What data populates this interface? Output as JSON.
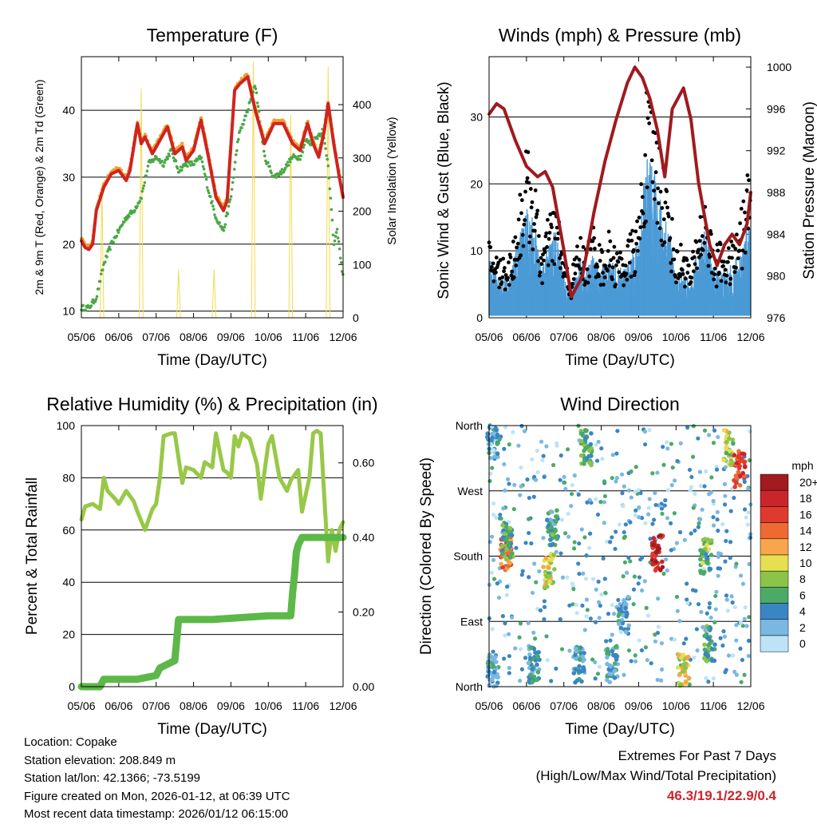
{
  "colors": {
    "temp_2m": "#d0241f",
    "temp_9m": "#f0a030",
    "dewpoint": "#4aa844",
    "solar": "#f5d94a",
    "wind": "#4b9ad6",
    "gust": "#000000",
    "pressure": "#a01a1e",
    "rh": "#98c848",
    "precip": "#5cb848",
    "extremes_text": "#c9262c"
  },
  "info": {
    "location": "Location: Copake",
    "elevation": "Station elevation: 208.849 m",
    "latlon": "Station lat/lon: 42.1366; -73.5199",
    "created": "Figure created on Mon, 2026-01-12, at 06:39 UTC",
    "timestamp": "Most recent data timestamp: 2026/01/12 06:15:00"
  },
  "extremes": {
    "title": "Extremes For Past 7 Days",
    "subtitle": "(High/Low/Max Wind/Total Precipitation)",
    "values": "46.3/19.1/22.9/0.4"
  },
  "chart_data": [
    {
      "id": "temperature",
      "type": "line",
      "title": "Temperature (F)",
      "xlabel": "Time (Day/UTC)",
      "ylabel": "2m & 9m T (Red, Orange) & 2m Td (Green)",
      "y2label": "Solar Insolation (Yellow)",
      "x_ticks": [
        "05/06",
        "06/06",
        "07/06",
        "08/06",
        "09/06",
        "10/06",
        "11/06",
        "12/06"
      ],
      "xlim": [
        0,
        7
      ],
      "ylim": [
        9,
        48
      ],
      "y_ticks": [
        10,
        20,
        30,
        40
      ],
      "y2lim": [
        0,
        490
      ],
      "y2_ticks": [
        0,
        100,
        200,
        300,
        400
      ],
      "series": [
        {
          "name": "2m T",
          "color_key": "temp_2m",
          "x": [
            0,
            0.1,
            0.2,
            0.3,
            0.4,
            0.6,
            0.8,
            1.0,
            1.2,
            1.3,
            1.5,
            1.6,
            1.7,
            1.9,
            2.1,
            2.3,
            2.5,
            2.7,
            2.8,
            3.0,
            3.2,
            3.4,
            3.6,
            3.8,
            3.9,
            4.1,
            4.25,
            4.45,
            4.65,
            4.9,
            5.15,
            5.4,
            5.65,
            5.85,
            6.05,
            6.2,
            6.35,
            6.5,
            6.6,
            6.75,
            6.9,
            7.0
          ],
          "values": [
            20.5,
            19.5,
            19.2,
            20,
            25,
            28.5,
            30.5,
            31,
            29.5,
            31,
            38,
            35,
            36,
            33.5,
            35.5,
            37.5,
            33.5,
            34.5,
            32.5,
            34,
            38.5,
            33,
            27,
            25,
            26.5,
            43,
            44,
            45,
            40,
            35,
            38,
            38,
            35,
            34,
            38,
            35,
            33,
            37,
            41,
            35,
            30,
            27
          ]
        },
        {
          "name": "2m Td",
          "color_key": "dewpoint",
          "x": [
            0,
            0.2,
            0.4,
            0.6,
            0.8,
            1.0,
            1.2,
            1.4,
            1.6,
            1.8,
            2.0,
            2.2,
            2.4,
            2.6,
            2.8,
            3.0,
            3.2,
            3.4,
            3.6,
            3.8,
            4.0,
            4.2,
            4.45,
            4.65,
            4.9,
            5.15,
            5.4,
            5.65,
            5.85,
            6.0,
            6.15,
            6.3,
            6.45,
            6.6,
            6.75,
            6.85,
            6.95,
            7.0
          ],
          "values": [
            10.5,
            10.5,
            12,
            17,
            20,
            22,
            24,
            25,
            27,
            32,
            33,
            32,
            34,
            31,
            32,
            32,
            33,
            28,
            24,
            22,
            27,
            36,
            40,
            44,
            33,
            30,
            31,
            33,
            33,
            35.5,
            35,
            36,
            37,
            32,
            20,
            22,
            17,
            15.5
          ]
        },
        {
          "name": "Solar Insolation",
          "color_key": "solar",
          "axis": "y2",
          "x": [
            0.3,
            0.5,
            0.55,
            0.6,
            0.8,
            1.3,
            1.55,
            1.6,
            1.65,
            1.9,
            2.3,
            2.55,
            2.6,
            2.65,
            2.9,
            3.3,
            3.5,
            3.55,
            3.6,
            3.85,
            4.3,
            4.55,
            4.6,
            4.65,
            4.85,
            5.3,
            5.55,
            5.6,
            5.65,
            5.85,
            6.3,
            6.55,
            6.6,
            6.65,
            6.9
          ],
          "values": [
            0,
            0,
            240,
            0,
            0,
            0,
            0,
            430,
            0,
            0,
            0,
            0,
            90,
            0,
            0,
            0,
            0,
            90,
            0,
            0,
            0,
            0,
            480,
            0,
            0,
            0,
            0,
            380,
            0,
            0,
            0,
            0,
            470,
            0,
            0
          ]
        }
      ]
    },
    {
      "id": "winds_pressure",
      "type": "scatter",
      "title": "Winds (mph) & Pressure (mb)",
      "xlabel": "Time (Day/UTC)",
      "ylabel": "Sonic Wind & Gust (Blue, Black)",
      "y2label": "Station Pressure (Maroon)",
      "x_ticks": [
        "05/06",
        "06/06",
        "07/06",
        "08/06",
        "09/06",
        "10/06",
        "11/06",
        "12/06"
      ],
      "xlim": [
        0,
        7
      ],
      "ylim": [
        0,
        39
      ],
      "y_ticks": [
        0,
        10,
        20,
        30
      ],
      "y2lim": [
        976,
        1001
      ],
      "y2_ticks": [
        976,
        980,
        984,
        988,
        992,
        996,
        1000
      ],
      "series": [
        {
          "name": "Wind",
          "color_key": "wind",
          "x": [
            0,
            0.3,
            0.6,
            0.8,
            1.0,
            1.2,
            1.4,
            1.6,
            1.8,
            2.0,
            2.2,
            2.4,
            2.6,
            2.8,
            3.0,
            3.2,
            3.4,
            3.6,
            3.8,
            4.0,
            4.2,
            4.4,
            4.6,
            4.8,
            5.0,
            5.2,
            5.4,
            5.6,
            5.8,
            6.0,
            6.2,
            6.4,
            6.6,
            6.8,
            7.0
          ],
          "values": [
            6,
            4,
            5,
            8,
            11,
            10,
            5,
            8,
            9,
            4,
            3,
            6,
            5,
            7,
            5,
            6,
            5,
            5,
            6,
            8,
            17,
            15,
            12,
            10,
            4,
            5,
            3,
            8,
            9,
            5,
            5,
            5,
            6,
            8,
            10
          ]
        },
        {
          "name": "Gust",
          "color_key": "gust",
          "x": [
            0,
            0.3,
            0.6,
            0.8,
            1.0,
            1.2,
            1.4,
            1.6,
            1.8,
            2.0,
            2.2,
            2.4,
            2.6,
            2.8,
            3.0,
            3.2,
            3.4,
            3.6,
            3.8,
            4.0,
            4.2,
            4.4,
            4.6,
            4.8,
            5.0,
            5.2,
            5.4,
            5.6,
            5.8,
            6.0,
            6.2,
            6.4,
            6.6,
            6.8,
            7.0
          ],
          "values": [
            9,
            7,
            8,
            14,
            20,
            17,
            8,
            12,
            14,
            7,
            5,
            10,
            8,
            12,
            8,
            10,
            8,
            8,
            10,
            12,
            26,
            25,
            20,
            15,
            8,
            9,
            6,
            12,
            15,
            8,
            9,
            8,
            10,
            14,
            19
          ]
        },
        {
          "name": "Pressure",
          "color_key": "pressure",
          "axis": "y2",
          "x": [
            0,
            0.2,
            0.4,
            0.7,
            1.0,
            1.3,
            1.5,
            1.7,
            2.0,
            2.2,
            2.5,
            2.8,
            3.1,
            3.4,
            3.7,
            3.9,
            4.1,
            4.3,
            4.5,
            4.7,
            4.9,
            5.2,
            5.4,
            5.6,
            5.9,
            6.1,
            6.3,
            6.5,
            6.7,
            6.9,
            7.0
          ],
          "values": [
            995.5,
            996.5,
            996,
            993,
            990.5,
            989.5,
            990,
            988.5,
            982.5,
            978,
            980,
            986,
            991,
            995,
            998.5,
            1000,
            999,
            997,
            994,
            989.5,
            996,
            998,
            995,
            989,
            983,
            981,
            983,
            984,
            983,
            985,
            988
          ]
        }
      ]
    },
    {
      "id": "rh_precip",
      "type": "line",
      "title": "Relative Humidity (%) & Precipitation (in)",
      "xlabel": "Time (Day/UTC)",
      "ylabel": "Percent & Total Rainfall",
      "x_ticks": [
        "05/06",
        "06/06",
        "07/06",
        "08/06",
        "09/06",
        "10/06",
        "11/06",
        "12/06"
      ],
      "xlim": [
        0,
        7
      ],
      "ylim": [
        0,
        100
      ],
      "y_ticks": [
        0,
        20,
        40,
        60,
        80,
        100
      ],
      "y2lim": [
        0,
        0.7
      ],
      "y2_ticks": [
        "0.00",
        "0.20",
        "0.40",
        "0.60"
      ],
      "series": [
        {
          "name": "Relative Humidity",
          "color_key": "rh",
          "x": [
            0,
            0.1,
            0.3,
            0.5,
            0.6,
            0.7,
            0.9,
            1.0,
            1.2,
            1.4,
            1.5,
            1.7,
            1.8,
            1.9,
            2.0,
            2.1,
            2.2,
            2.4,
            2.5,
            2.7,
            2.8,
            3.0,
            3.2,
            3.3,
            3.5,
            3.6,
            3.8,
            3.9,
            4.0,
            4.1,
            4.2,
            4.3,
            4.5,
            4.7,
            4.8,
            5.0,
            5.1,
            5.3,
            5.5,
            5.6,
            5.8,
            5.9,
            6.1,
            6.2,
            6.3,
            6.4,
            6.5,
            6.6,
            6.7,
            6.8,
            6.9,
            7.0
          ],
          "values": [
            64,
            69,
            70,
            68,
            80,
            75,
            72,
            70,
            75,
            71,
            67,
            60,
            64,
            68,
            70,
            80,
            96,
            97,
            97,
            78,
            84,
            83,
            80,
            86,
            84,
            97,
            83,
            82,
            80,
            96,
            92,
            97,
            95,
            85,
            72,
            93,
            96,
            80,
            75,
            79,
            83,
            67,
            80,
            97,
            98,
            97,
            72,
            48,
            60,
            52,
            60,
            63
          ]
        },
        {
          "name": "Total Precipitation",
          "color_key": "precip",
          "axis": "y2",
          "x": [
            0,
            0.5,
            0.6,
            1.5,
            2.0,
            2.1,
            2.5,
            2.6,
            2.7,
            3.5,
            5.0,
            5.6,
            5.65,
            5.7,
            5.75,
            5.8,
            5.9,
            6.0,
            6.6,
            7.0
          ],
          "values": [
            0,
            0,
            0.02,
            0.02,
            0.03,
            0.05,
            0.07,
            0.18,
            0.18,
            0.18,
            0.19,
            0.19,
            0.25,
            0.3,
            0.36,
            0.38,
            0.4,
            0.4,
            0.4,
            0.4
          ]
        }
      ]
    },
    {
      "id": "wind_direction",
      "type": "scatter",
      "title": "Wind Direction",
      "xlabel": "Time (Day/UTC)",
      "ylabel": "Direction (Colored By Speed)",
      "x_ticks": [
        "05/06",
        "06/06",
        "07/06",
        "08/06",
        "09/06",
        "10/06",
        "11/06",
        "12/06"
      ],
      "xlim": [
        0,
        7
      ],
      "ylim": [
        0,
        360
      ],
      "y_ticks": [
        "North",
        "East",
        "South",
        "West",
        "North"
      ],
      "colorbar": {
        "title": "mph",
        "labels": [
          "20+",
          "18",
          "16",
          "14",
          "12",
          "10",
          "8",
          "6",
          "4",
          "2",
          "0"
        ],
        "colors": [
          "#a11b1f",
          "#c9262c",
          "#e03a2e",
          "#ee6a30",
          "#f7a64b",
          "#e6df50",
          "#8cc449",
          "#4caa68",
          "#3a86c2",
          "#7ab8e2",
          "#bde4f6"
        ]
      },
      "clusters": [
        {
          "x": 0.1,
          "dir": 20,
          "speed": 4
        },
        {
          "x": 0.1,
          "dir": 340,
          "speed": 3
        },
        {
          "x": 0.45,
          "dir": 185,
          "speed": 14
        },
        {
          "x": 0.5,
          "dir": 200,
          "speed": 6
        },
        {
          "x": 1.2,
          "dir": 30,
          "speed": 4
        },
        {
          "x": 1.6,
          "dir": 160,
          "speed": 9
        },
        {
          "x": 1.7,
          "dir": 220,
          "speed": 5
        },
        {
          "x": 2.4,
          "dir": 30,
          "speed": 4
        },
        {
          "x": 2.6,
          "dir": 330,
          "speed": 6
        },
        {
          "x": 3.3,
          "dir": 30,
          "speed": 4
        },
        {
          "x": 3.6,
          "dir": 100,
          "speed": 3
        },
        {
          "x": 4.5,
          "dir": 185,
          "speed": 18
        },
        {
          "x": 5.2,
          "dir": 20,
          "speed": 10
        },
        {
          "x": 5.8,
          "dir": 180,
          "speed": 7
        },
        {
          "x": 5.9,
          "dir": 60,
          "speed": 5
        },
        {
          "x": 6.4,
          "dir": 330,
          "speed": 9
        },
        {
          "x": 6.7,
          "dir": 300,
          "speed": 16
        }
      ]
    }
  ]
}
